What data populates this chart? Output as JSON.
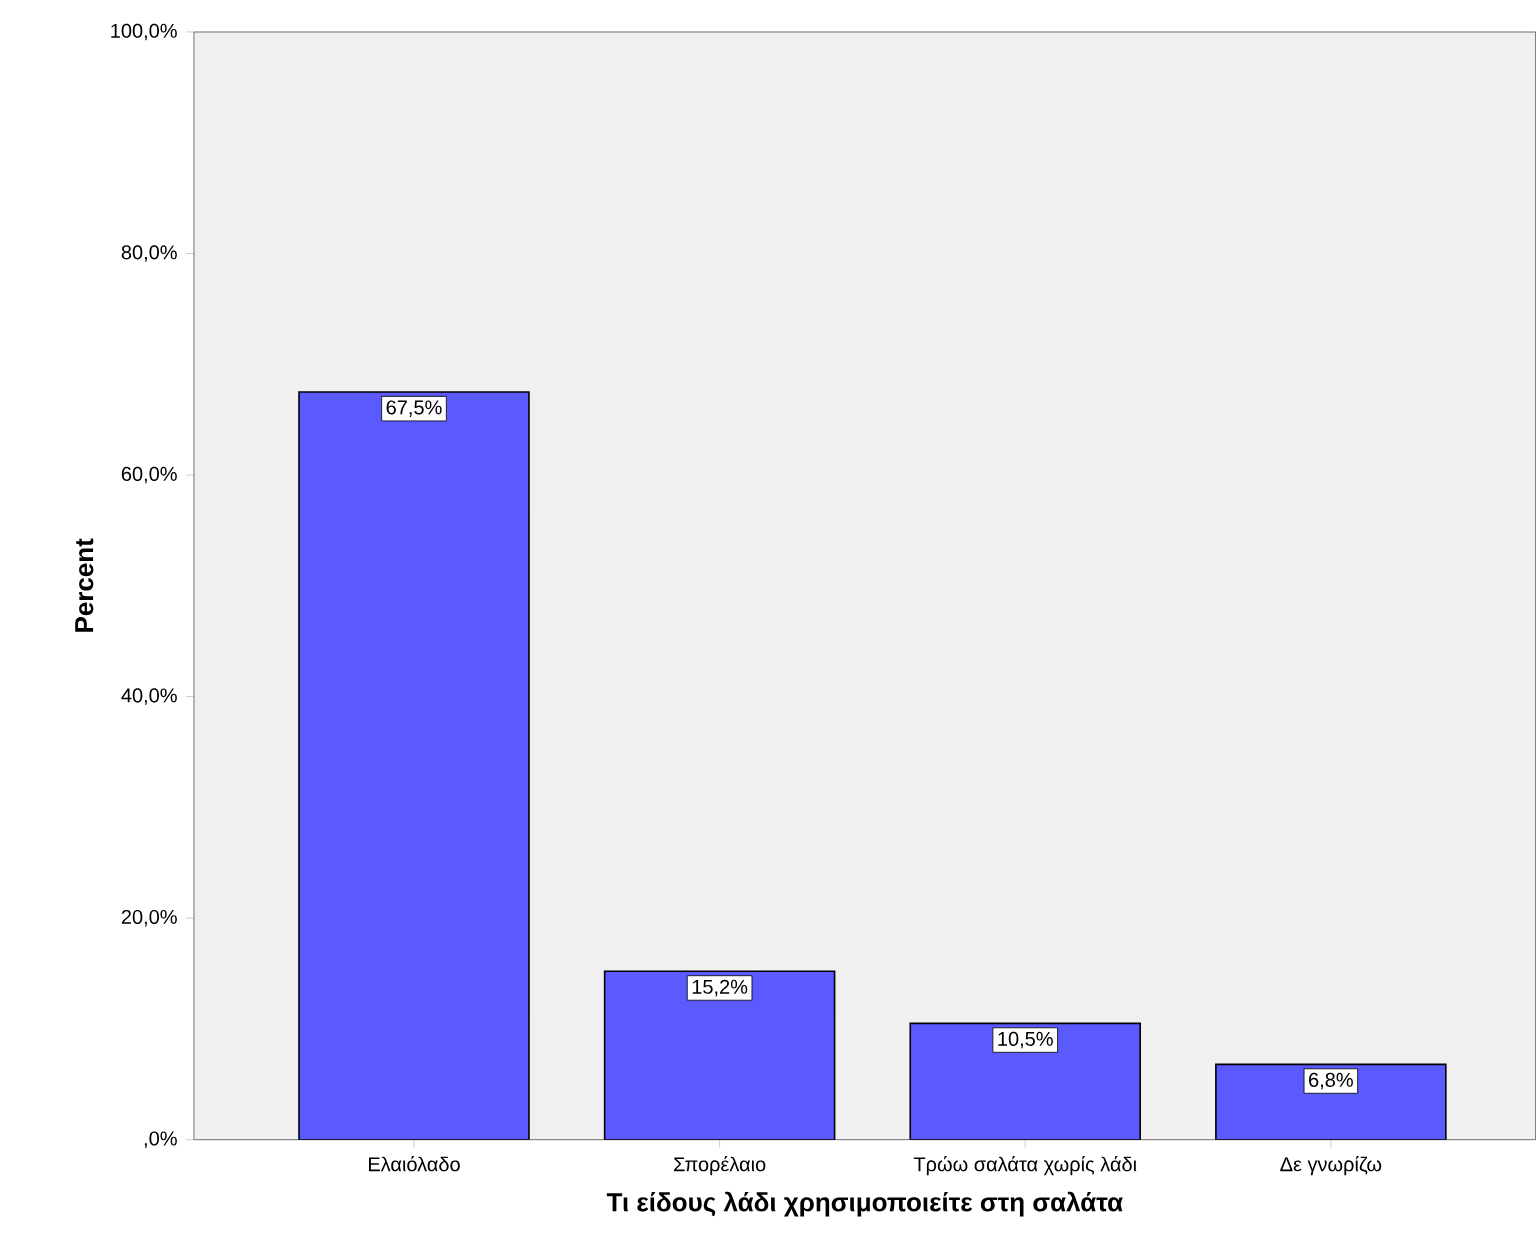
{
  "chart_data": {
    "type": "bar",
    "categories": [
      "Ελαιόλαδο",
      "Σπορέλαιο",
      "Τρώω σαλάτα χωρίς λάδι",
      "Δε γνωρίζω"
    ],
    "values": [
      67.5,
      15.2,
      10.5,
      6.8
    ],
    "value_labels": [
      "67,5%",
      "15,2%",
      "10,5%",
      "6,8%"
    ],
    "color": "#5a5aff",
    "xlabel": "Τι είδους λάδι χρησιμοποιείτε στη σαλάτα",
    "ylabel": "Percent",
    "ylim": [
      0,
      100
    ],
    "yticks": [
      {
        "value": 0,
        "label": ",0%"
      },
      {
        "value": 20,
        "label": "20,0%"
      },
      {
        "value": 40,
        "label": "40,0%"
      },
      {
        "value": 60,
        "label": "60,0%"
      },
      {
        "value": 80,
        "label": "80,0%"
      },
      {
        "value": 100,
        "label": "100,0%"
      }
    ]
  }
}
